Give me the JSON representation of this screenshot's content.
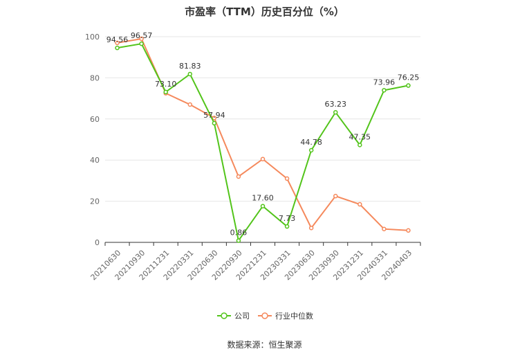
{
  "title": "市盈率（TTM）历史百分位（%）",
  "source": "数据来源：恒生聚源",
  "chart_data": {
    "type": "line",
    "title": "市盈率（TTM）历史百分位（%）",
    "xlabel": "",
    "ylabel": "",
    "ylim": [
      0,
      100
    ],
    "yticks": [
      0,
      20,
      40,
      60,
      80,
      100
    ],
    "grid": true,
    "legend_position": "bottom",
    "categories": [
      "20210630",
      "20210930",
      "20211231",
      "20220331",
      "20220630",
      "20220930",
      "20221231",
      "20230331",
      "20230630",
      "20230930",
      "20231231",
      "20240331",
      "20240403"
    ],
    "series": [
      {
        "name": "公司",
        "color": "#52c41a",
        "values": [
          94.56,
          96.57,
          73.1,
          81.83,
          57.94,
          0.86,
          17.6,
          7.73,
          44.78,
          63.23,
          47.35,
          73.96,
          76.25
        ],
        "labels": [
          "94.56",
          "96.57",
          "73.10",
          "81.83",
          "57.94",
          "0.86",
          "17.60",
          "7.73",
          "44.78",
          "63.23",
          "47.35",
          "73.96",
          "76.25"
        ]
      },
      {
        "name": "行业中位数",
        "color": "#f5895c",
        "values": [
          97.0,
          99.0,
          72.5,
          67.0,
          60.5,
          32.0,
          40.5,
          31.0,
          7.0,
          22.5,
          18.5,
          6.5,
          5.8
        ]
      }
    ]
  }
}
